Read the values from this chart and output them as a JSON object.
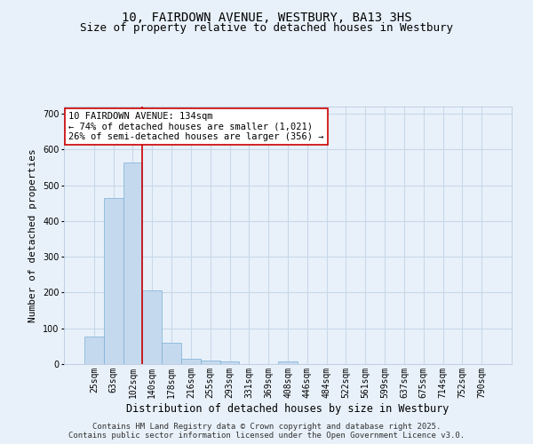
{
  "title": "10, FAIRDOWN AVENUE, WESTBURY, BA13 3HS",
  "subtitle": "Size of property relative to detached houses in Westbury",
  "xlabel": "Distribution of detached houses by size in Westbury",
  "ylabel": "Number of detached properties",
  "bar_color": "#c5d9ee",
  "bar_edge_color": "#7aafd4",
  "background_color": "#e8f1fa",
  "grid_color": "#c8d8e8",
  "vline_color": "#cc0000",
  "vline_x_index": 3,
  "categories": [
    "25sqm",
    "63sqm",
    "102sqm",
    "140sqm",
    "178sqm",
    "216sqm",
    "255sqm",
    "293sqm",
    "331sqm",
    "369sqm",
    "408sqm",
    "446sqm",
    "484sqm",
    "522sqm",
    "561sqm",
    "599sqm",
    "637sqm",
    "675sqm",
    "714sqm",
    "752sqm",
    "790sqm"
  ],
  "values": [
    78,
    465,
    563,
    207,
    60,
    15,
    10,
    7,
    0,
    0,
    7,
    0,
    0,
    0,
    0,
    0,
    0,
    0,
    0,
    0,
    0
  ],
  "ylim": [
    0,
    720
  ],
  "yticks": [
    0,
    100,
    200,
    300,
    400,
    500,
    600,
    700
  ],
  "annotation_text": "10 FAIRDOWN AVENUE: 134sqm\n← 74% of detached houses are smaller (1,021)\n26% of semi-detached houses are larger (356) →",
  "annotation_box_color": "#ffffff",
  "annotation_box_edge": "#cc0000",
  "footer_text": "Contains HM Land Registry data © Crown copyright and database right 2025.\nContains public sector information licensed under the Open Government Licence v3.0.",
  "title_fontsize": 10,
  "subtitle_fontsize": 9,
  "xlabel_fontsize": 8.5,
  "ylabel_fontsize": 8,
  "tick_fontsize": 7,
  "annotation_fontsize": 7.5,
  "footer_fontsize": 6.5
}
